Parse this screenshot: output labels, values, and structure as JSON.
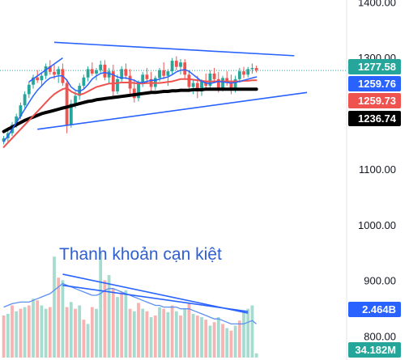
{
  "chart_data": {
    "type": "candlestick",
    "price_axis": {
      "ticks": [
        1400,
        1300,
        1100,
        1000,
        900,
        800
      ],
      "tick_labels": [
        "1400.00",
        "1300.00",
        "1100.00",
        "1000.00",
        "900.00",
        "800.00"
      ],
      "visible_range": [
        758,
        1404
      ],
      "current_price_line": 1277.58
    },
    "badges": [
      {
        "label": "1277.58",
        "color": "#26a69a"
      },
      {
        "label": "1259.76",
        "color": "#2962ff"
      },
      {
        "label": "1259.73",
        "color": "#ef5350"
      },
      {
        "label": "1236.74",
        "color": "#000000"
      },
      {
        "label": "2.464B",
        "color": "#2962ff"
      },
      {
        "label": "34.182M",
        "color": "#26a69a"
      }
    ],
    "annotation": "Thanh khoản cạn kiệt",
    "candles": [
      [
        1150,
        1160,
        1145,
        1156
      ],
      [
        1156,
        1170,
        1150,
        1165
      ],
      [
        1165,
        1185,
        1160,
        1180
      ],
      [
        1180,
        1200,
        1175,
        1195
      ],
      [
        1195,
        1220,
        1190,
        1215
      ],
      [
        1215,
        1240,
        1210,
        1235
      ],
      [
        1235,
        1258,
        1228,
        1252
      ],
      [
        1252,
        1270,
        1245,
        1265
      ],
      [
        1265,
        1278,
        1255,
        1260
      ],
      [
        1260,
        1272,
        1250,
        1268
      ],
      [
        1268,
        1290,
        1262,
        1285
      ],
      [
        1285,
        1296,
        1270,
        1275
      ],
      [
        1275,
        1288,
        1262,
        1270
      ],
      [
        1270,
        1285,
        1255,
        1280
      ],
      [
        1280,
        1290,
        1250,
        1255
      ],
      [
        1255,
        1262,
        1165,
        1180
      ],
      [
        1180,
        1225,
        1175,
        1218
      ],
      [
        1218,
        1240,
        1210,
        1232
      ],
      [
        1232,
        1255,
        1225,
        1250
      ],
      [
        1250,
        1270,
        1245,
        1265
      ],
      [
        1265,
        1285,
        1258,
        1280
      ],
      [
        1280,
        1292,
        1268,
        1272
      ],
      [
        1272,
        1282,
        1260,
        1278
      ],
      [
        1278,
        1295,
        1272,
        1288
      ],
      [
        1288,
        1296,
        1260,
        1265
      ],
      [
        1265,
        1282,
        1255,
        1276
      ],
      [
        1276,
        1288,
        1230,
        1240
      ],
      [
        1240,
        1270,
        1235,
        1262
      ],
      [
        1262,
        1285,
        1255,
        1280
      ],
      [
        1280,
        1290,
        1262,
        1268
      ],
      [
        1268,
        1280,
        1235,
        1245
      ],
      [
        1245,
        1262,
        1220,
        1228
      ],
      [
        1228,
        1260,
        1222,
        1255
      ],
      [
        1255,
        1275,
        1248,
        1270
      ],
      [
        1270,
        1282,
        1255,
        1262
      ],
      [
        1262,
        1275,
        1240,
        1248
      ],
      [
        1248,
        1268,
        1242,
        1264
      ],
      [
        1264,
        1282,
        1258,
        1278
      ],
      [
        1278,
        1292,
        1262,
        1268
      ],
      [
        1268,
        1280,
        1250,
        1276
      ],
      [
        1276,
        1300,
        1270,
        1295
      ],
      [
        1295,
        1303,
        1278,
        1284
      ],
      [
        1284,
        1298,
        1270,
        1292
      ],
      [
        1292,
        1298,
        1262,
        1270
      ],
      [
        1270,
        1278,
        1240,
        1248
      ],
      [
        1248,
        1262,
        1235,
        1255
      ],
      [
        1255,
        1268,
        1228,
        1240
      ],
      [
        1240,
        1262,
        1232,
        1258
      ],
      [
        1258,
        1272,
        1245,
        1250
      ],
      [
        1250,
        1278,
        1246,
        1272
      ],
      [
        1272,
        1282,
        1255,
        1262
      ],
      [
        1262,
        1275,
        1238,
        1244
      ],
      [
        1244,
        1268,
        1240,
        1264
      ],
      [
        1264,
        1276,
        1250,
        1256
      ],
      [
        1256,
        1270,
        1235,
        1242
      ],
      [
        1242,
        1268,
        1238,
        1262
      ],
      [
        1262,
        1282,
        1256,
        1276
      ],
      [
        1276,
        1284,
        1264,
        1270
      ],
      [
        1270,
        1284,
        1265,
        1280
      ],
      [
        1280,
        1290,
        1272,
        1282
      ],
      [
        1282,
        1286,
        1274,
        1278
      ]
    ],
    "moving_averages": [
      {
        "color": "#000000",
        "width": 4,
        "values": [
          1168,
          1172,
          1176,
          1180,
          1184,
          1188,
          1191,
          1194,
          1197,
          1200,
          1202,
          1204,
          1206,
          1208,
          1210,
          1212,
          1214,
          1216,
          1218,
          1220,
          1222,
          1223,
          1225,
          1226,
          1227,
          1228,
          1229,
          1230,
          1231,
          1232,
          1233,
          1234,
          1235,
          1236,
          1237,
          1238,
          1238,
          1239,
          1240,
          1240,
          1241,
          1241,
          1242,
          1242,
          1242,
          1243,
          1243,
          1243,
          1244,
          1244,
          1244,
          1244,
          1244,
          1244,
          1244,
          1244,
          1244,
          1244,
          1244,
          1244,
          1244
        ]
      },
      {
        "color": "#ef5350",
        "width": 2,
        "values": [
          1140,
          1148,
          1156,
          1164,
          1172,
          1180,
          1188,
          1196,
          1204,
          1212,
          1220,
          1228,
          1235,
          1240,
          1244,
          1246,
          1240,
          1236,
          1234,
          1236,
          1240,
          1244,
          1248,
          1250,
          1252,
          1254,
          1254,
          1255,
          1256,
          1256,
          1256,
          1255,
          1254,
          1254,
          1255,
          1255,
          1255,
          1255,
          1256,
          1257,
          1258,
          1260,
          1262,
          1262,
          1262,
          1261,
          1260,
          1259,
          1258,
          1258,
          1258,
          1258,
          1258,
          1258,
          1258,
          1258,
          1258,
          1259,
          1259,
          1260,
          1260
        ]
      },
      {
        "color": "#2962ff",
        "width": 1.5,
        "values": [
          1150,
          1160,
          1172,
          1184,
          1196,
          1208,
          1220,
          1232,
          1242,
          1250,
          1258,
          1264,
          1266,
          1268,
          1268,
          1260,
          1248,
          1242,
          1240,
          1244,
          1252,
          1262,
          1268,
          1272,
          1274,
          1272,
          1270,
          1266,
          1264,
          1264,
          1262,
          1260,
          1256,
          1256,
          1258,
          1260,
          1260,
          1262,
          1264,
          1266,
          1270,
          1275,
          1278,
          1279,
          1276,
          1270,
          1264,
          1258,
          1255,
          1254,
          1256,
          1258,
          1257,
          1256,
          1255,
          1256,
          1258,
          1260,
          1262,
          1264,
          1266
        ]
      }
    ],
    "trendlines": [
      {
        "color": "#2962ff",
        "from": [
          12,
          1328
        ],
        "to": [
          69,
          1304
        ]
      },
      {
        "color": "#2962ff",
        "from": [
          8,
          1172
        ],
        "to": [
          72,
          1238
        ]
      },
      {
        "color": "#2962ff",
        "from": [
          6,
          1257
        ],
        "to": [
          14,
          1300
        ]
      },
      {
        "color": "#2962ff",
        "from": [
          14,
          912
        ],
        "to": [
          58,
          842
        ]
      },
      {
        "color": "#2962ff",
        "from": [
          14,
          892
        ],
        "to": [
          58,
          845
        ]
      }
    ],
    "volume": {
      "values": [
        50,
        52,
        62,
        55,
        58,
        60,
        62,
        70,
        68,
        62,
        58,
        60,
        120,
        95,
        92,
        60,
        66,
        58,
        62,
        45,
        40,
        60,
        58,
        125,
        92,
        98,
        82,
        72,
        78,
        80,
        58,
        55,
        65,
        58,
        55,
        48,
        50,
        60,
        58,
        54,
        62,
        55,
        50,
        58,
        64,
        52,
        50,
        48,
        45,
        38,
        42,
        48,
        40,
        35,
        32,
        38,
        44,
        55,
        58,
        62,
        5
      ],
      "colors": [
        "r",
        "g",
        "r",
        "g",
        "r",
        "g",
        "r",
        "g",
        "r",
        "g",
        "g",
        "r",
        "g",
        "r",
        "g",
        "r",
        "g",
        "r",
        "g",
        "r",
        "g",
        "r",
        "g",
        "g",
        "r",
        "g",
        "r",
        "g",
        "r",
        "g",
        "r",
        "g",
        "r",
        "g",
        "r",
        "g",
        "r",
        "g",
        "r",
        "g",
        "r",
        "g",
        "r",
        "g",
        "r",
        "g",
        "r",
        "g",
        "r",
        "g",
        "r",
        "g",
        "r",
        "g",
        "r",
        "g",
        "r",
        "g",
        "g",
        "g",
        "g"
      ],
      "volume_ma": [
        60,
        62,
        64,
        65,
        66,
        66,
        66,
        68,
        70,
        72,
        74,
        76,
        80,
        84,
        88,
        86,
        84,
        82,
        80,
        78,
        76,
        74,
        74,
        76,
        80,
        82,
        82,
        80,
        78,
        76,
        74,
        72,
        70,
        68,
        66,
        64,
        62,
        62,
        60,
        60,
        60,
        60,
        58,
        58,
        58,
        56,
        54,
        52,
        50,
        48,
        46,
        46,
        44,
        42,
        40,
        40,
        40,
        40,
        42,
        44,
        40
      ]
    }
  }
}
